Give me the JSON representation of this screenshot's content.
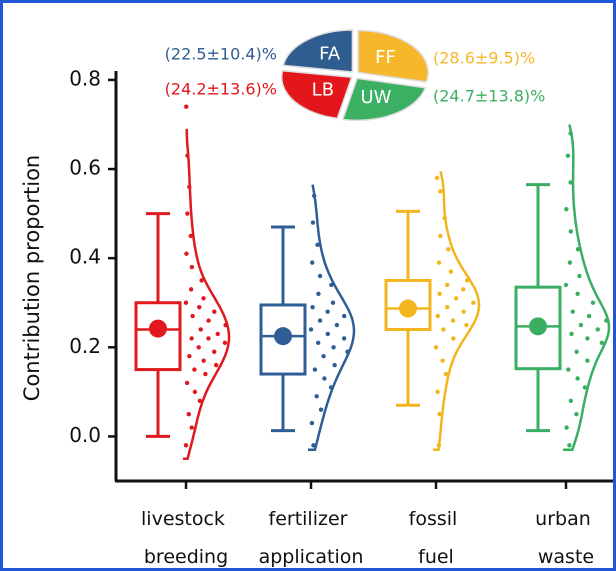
{
  "chart_data": {
    "type": "box",
    "y_label": "Contribution proportion",
    "ylim": [
      -0.1,
      0.82
    ],
    "yticks": [
      {
        "value": 0,
        "label": "0.0"
      },
      0.2,
      0.4,
      0.6,
      0.8
    ],
    "categories": [
      "livestock breeding",
      "fertilizer application",
      "fossil fuel",
      "urban waste"
    ],
    "colors": [
      "#e0191e",
      "#2e5e95",
      "#f3b51d",
      "#3aae62"
    ],
    "boxes": [
      {
        "low": 0.0,
        "q1": 0.15,
        "median": 0.24,
        "q3": 0.3,
        "high": 0.5,
        "mean": 0.242
      },
      {
        "low": 0.013,
        "q1": 0.14,
        "median": 0.225,
        "q3": 0.295,
        "high": 0.47,
        "mean": 0.225
      },
      {
        "low": 0.07,
        "q1": 0.24,
        "median": 0.287,
        "q3": 0.35,
        "high": 0.505,
        "mean": 0.287
      },
      {
        "low": 0.013,
        "q1": 0.152,
        "median": 0.247,
        "q3": 0.335,
        "high": 0.565,
        "mean": 0.247
      }
    ],
    "violin_range": [
      [
        -0.05,
        0.69
      ],
      [
        -0.03,
        0.565
      ],
      [
        -0.03,
        0.595
      ],
      [
        -0.03,
        0.7
      ]
    ],
    "points": [
      [
        -0.02,
        0.02,
        0.05,
        0.08,
        0.1,
        0.12,
        0.14,
        0.15,
        0.16,
        0.17,
        0.18,
        0.19,
        0.2,
        0.21,
        0.22,
        0.22,
        0.23,
        0.24,
        0.25,
        0.26,
        0.27,
        0.28,
        0.29,
        0.3,
        0.31,
        0.33,
        0.35,
        0.38,
        0.41,
        0.45,
        0.5,
        0.56,
        0.63,
        0.74
      ],
      [
        -0.02,
        0.03,
        0.06,
        0.09,
        0.11,
        0.13,
        0.15,
        0.16,
        0.18,
        0.19,
        0.2,
        0.21,
        0.22,
        0.23,
        0.24,
        0.25,
        0.26,
        0.27,
        0.28,
        0.29,
        0.3,
        0.32,
        0.34,
        0.36,
        0.39,
        0.43,
        0.48,
        0.54
      ],
      [
        -0.02,
        0.05,
        0.1,
        0.14,
        0.17,
        0.2,
        0.22,
        0.24,
        0.25,
        0.26,
        0.27,
        0.28,
        0.29,
        0.3,
        0.31,
        0.32,
        0.33,
        0.34,
        0.35,
        0.37,
        0.39,
        0.42,
        0.45,
        0.49,
        0.55,
        0.58
      ],
      [
        -0.02,
        0.02,
        0.05,
        0.08,
        0.11,
        0.13,
        0.15,
        0.17,
        0.19,
        0.21,
        0.22,
        0.23,
        0.24,
        0.25,
        0.26,
        0.27,
        0.28,
        0.3,
        0.32,
        0.34,
        0.36,
        0.39,
        0.42,
        0.46,
        0.51,
        0.57,
        0.63,
        0.68
      ]
    ],
    "inset": {
      "type": "pie",
      "labels": [
        "FF",
        "UW",
        "LB",
        "FA"
      ],
      "values": [
        28.6,
        24.7,
        24.2,
        22.5
      ],
      "value_labels": [
        "(28.6±9.5)%",
        "(24.7±13.8)%",
        "(24.2±13.6)%",
        "(22.5±10.4)%"
      ],
      "colors": [
        "#f6b72a",
        "#3cb062",
        "#e3161b",
        "#2f5d8f"
      ]
    }
  }
}
